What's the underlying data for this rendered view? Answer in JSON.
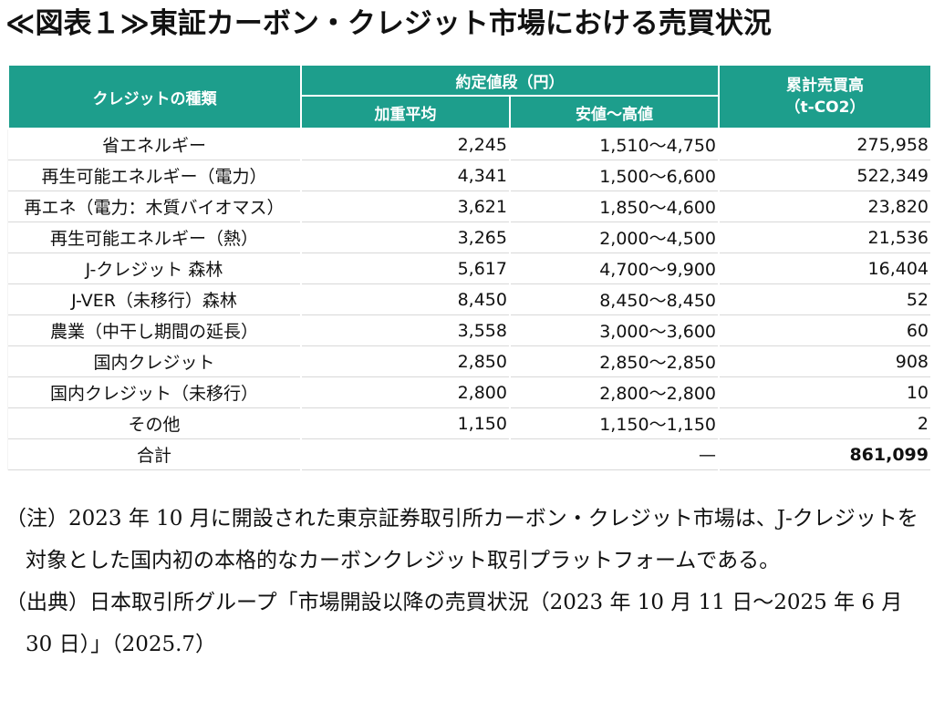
{
  "title": "≪図表１≫東証カーボン・クレジット市場における売買状況",
  "table": {
    "header": {
      "col_type": "クレジットの種類",
      "col_price_group": "約定値段（円）",
      "col_avg": "加重平均",
      "col_range": "安値～高値",
      "col_volume": "累計売買高\n（t-CO2）"
    },
    "rows": [
      {
        "name": "省エネルギー",
        "avg": "2,245",
        "range": "1,510～4,750",
        "volume": "275,958"
      },
      {
        "name": "再生可能エネルギー（電力）",
        "avg": "4,341",
        "range": "1,500～6,600",
        "volume": "522,349"
      },
      {
        "name": "再エネ（電力：木質バイオマス）",
        "avg": "3,621",
        "range": "1,850～4,600",
        "volume": "23,820"
      },
      {
        "name": "再生可能エネルギー（熱）",
        "avg": "3,265",
        "range": "2,000～4,500",
        "volume": "21,536"
      },
      {
        "name": "J-クレジット 森林",
        "avg": "5,617",
        "range": "4,700～9,900",
        "volume": "16,404"
      },
      {
        "name": "J-VER（未移行）森林",
        "avg": "8,450",
        "range": "8,450～8,450",
        "volume": "52"
      },
      {
        "name": "農業（中干し期間の延長）",
        "avg": "3,558",
        "range": "3,000～3,600",
        "volume": "60"
      },
      {
        "name": "国内クレジット",
        "avg": "2,850",
        "range": "2,850～2,850",
        "volume": "908"
      },
      {
        "name": "国内クレジット（未移行）",
        "avg": "2,800",
        "range": "2,800～2,800",
        "volume": "10"
      },
      {
        "name": "その他",
        "avg": "1,150",
        "range": "1,150～1,150",
        "volume": "2"
      }
    ],
    "total": {
      "name": "合計",
      "price": "—",
      "volume": "861,099"
    }
  },
  "notes": {
    "note1_label": "（注）",
    "note1_text": "2023 年 10 月に開設された東京証券取引所カーボン・クレジット市場は、J-クレジットを対象とした国内初の本格的なカーボンクレジット取引プラットフォームである。",
    "source_label": "（出典）",
    "source_text": "日本取引所グループ「市場開設以降の売買状況（2023 年 10 月 11 日～2025 年 6 月 30 日）」（2025.7）"
  }
}
